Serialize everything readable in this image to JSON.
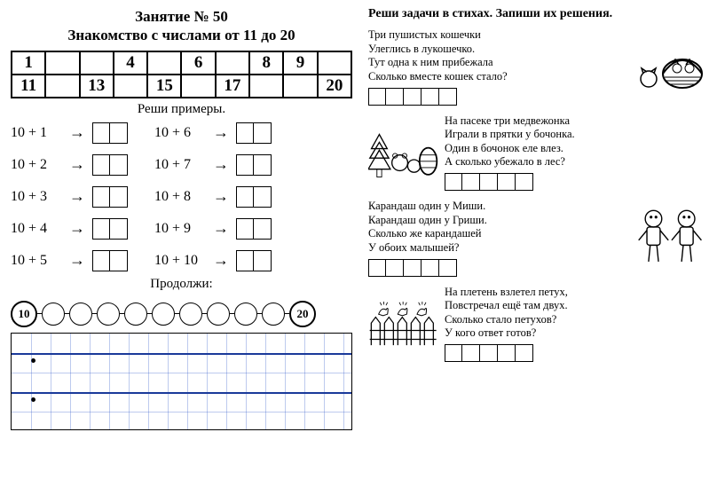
{
  "title_line1": "Занятие № 50",
  "title_line2": "Знакомство с числами от 11 до 20",
  "numtable": {
    "row1": [
      "1",
      "",
      "",
      "4",
      "",
      "6",
      "",
      "8",
      "9",
      ""
    ],
    "row2": [
      "11",
      "",
      "13",
      "",
      "15",
      "",
      "17",
      "",
      "",
      "20"
    ]
  },
  "solve_label": "Реши примеры.",
  "examples_col1": [
    "10 + 1",
    "10 + 2",
    "10 + 3",
    "10 + 4",
    "10 + 5"
  ],
  "examples_col2": [
    "10 + 6",
    "10 + 7",
    "10 + 8",
    "10 + 9",
    "10 + 10"
  ],
  "arrow_glyph": "→",
  "continue_label": "Продолжи:",
  "chain_start": "10",
  "chain_end": "20",
  "chain_empty_count": 9,
  "right_title": "Реши задачи в стихах. Запиши их решения.",
  "poems": [
    {
      "lines": [
        "Три пушистых кошечки",
        "Улеглись в лукошечко.",
        "Тут одна к ним прибежала",
        "Сколько вместе кошек стало?"
      ],
      "layout": "text-left"
    },
    {
      "lines": [
        "На пасеке три медвежонка",
        "Играли в прятки у бочонка.",
        "Один в бочонок еле влез.",
        "А сколько убежало в лес?"
      ],
      "layout": "art-left"
    },
    {
      "lines": [
        "Карандаш один у Миши.",
        "Карандаш один у Гриши.",
        "Сколько же карандашей",
        "У обоих малышей?"
      ],
      "layout": "text-left"
    },
    {
      "lines": [
        "На плетень взлетел петух,",
        "Повстречал ещё там двух.",
        "Сколько стало петухов?",
        "У кого ответ готов?"
      ],
      "layout": "art-left"
    }
  ],
  "colors": {
    "grid": "#3a5fcd",
    "ink": "#000000"
  }
}
